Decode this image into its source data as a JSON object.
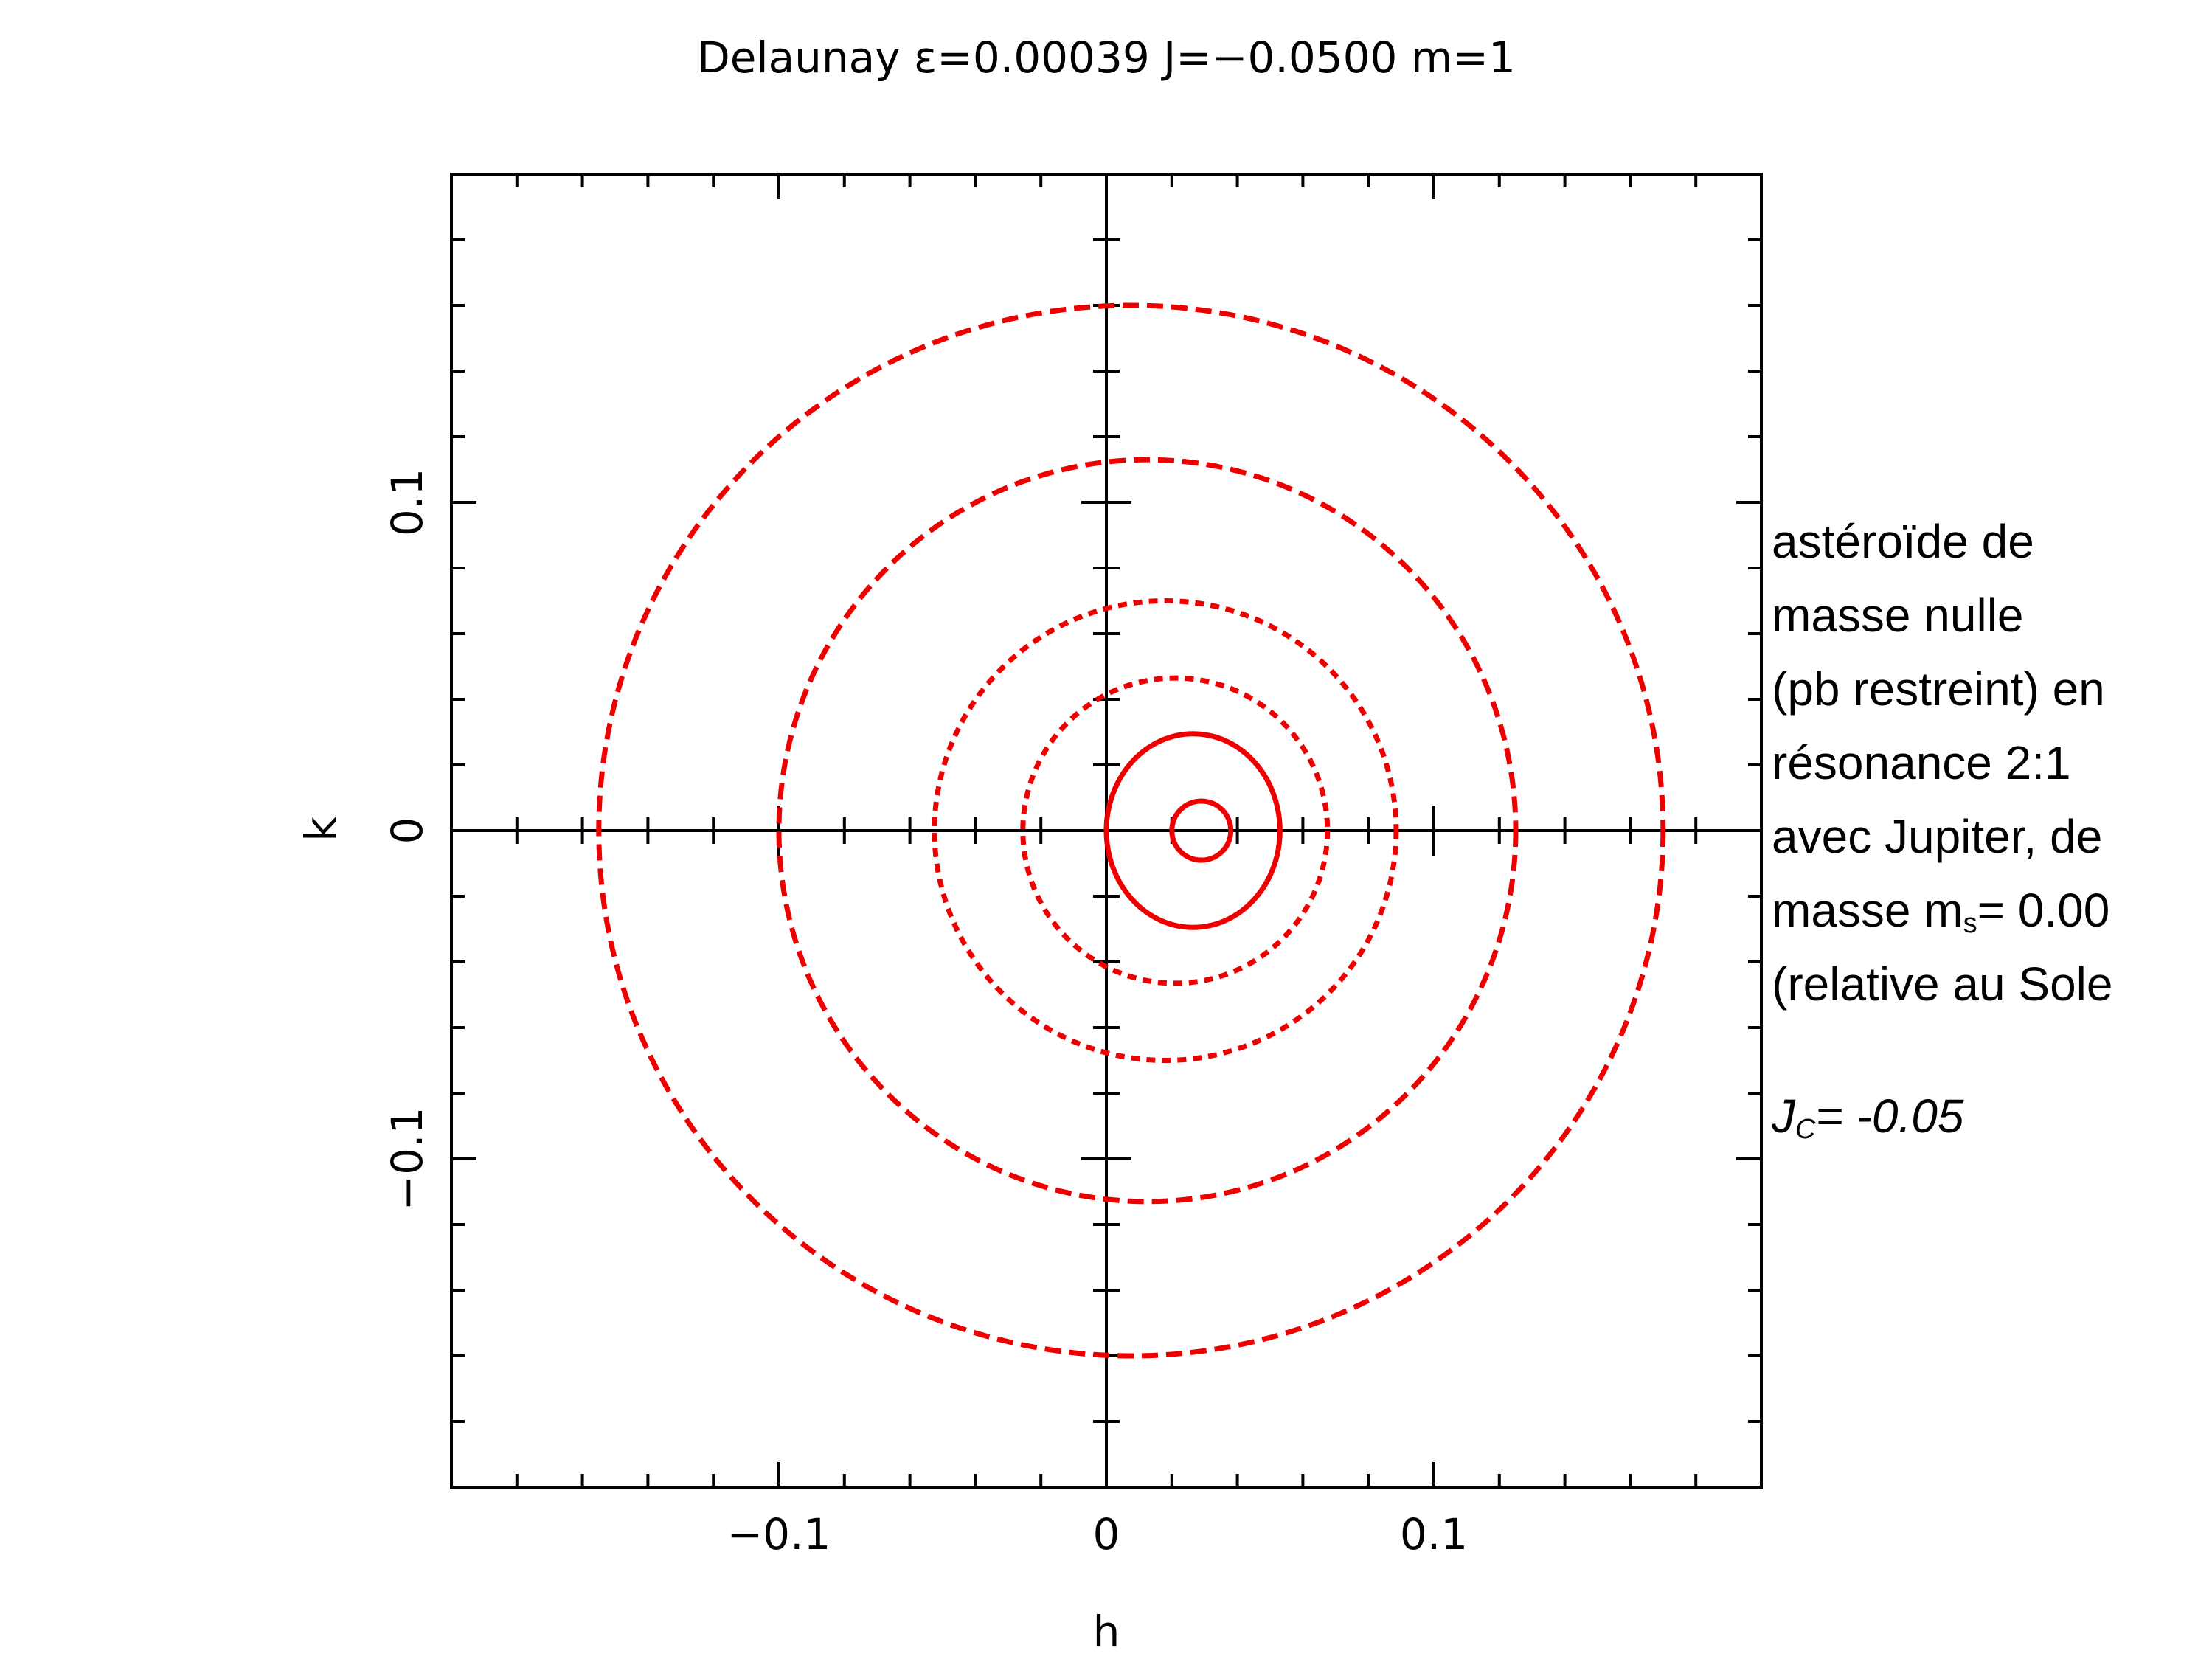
{
  "chart_data": {
    "type": "line",
    "title": "Delaunay ε=0.00039 J=−0.0500 m=1",
    "xlabel": "h",
    "ylabel": "k",
    "xlim": [
      -0.2,
      0.2
    ],
    "ylim": [
      -0.2,
      0.2
    ],
    "x_ticks": [
      -0.1,
      0,
      0.1
    ],
    "y_ticks": [
      -0.1,
      0,
      0.1
    ],
    "x_tick_labels": [
      "−0.1",
      "0",
      "0.1"
    ],
    "y_tick_labels": [
      "−0.1",
      "0",
      "0.1"
    ],
    "grid": false,
    "axis_cross_lines": true,
    "series_color": "#ee0000",
    "series": [
      {
        "center": [
          0.0075,
          0.0
        ],
        "semi_axis_h": 0.1625,
        "semi_axis_k": 0.16,
        "style": "dashed"
      },
      {
        "center": [
          0.0125,
          0.0
        ],
        "semi_axis_h": 0.1125,
        "semi_axis_k": 0.113,
        "style": "dashed"
      },
      {
        "center": [
          0.018,
          0.0
        ],
        "semi_axis_h": 0.0705,
        "semi_axis_k": 0.07,
        "style": "dotted"
      },
      {
        "center": [
          0.021,
          0.0
        ],
        "semi_axis_h": 0.0465,
        "semi_axis_k": 0.0465,
        "style": "dotted"
      },
      {
        "center": [
          0.0265,
          0.0
        ],
        "semi_axis_h": 0.0265,
        "semi_axis_k": 0.0295,
        "style": "solid"
      },
      {
        "center": [
          0.029,
          0.0
        ],
        "semi_axis_h": 0.009,
        "semi_axis_k": 0.009,
        "style": "solid"
      }
    ]
  },
  "annotation": {
    "lines": [
      "astéroïde de",
      "masse nulle",
      "(pb restreint) en",
      "résonance 2:1",
      "avec Jupiter, de"
    ],
    "mass_prefix": "masse m",
    "mass_sub": "s",
    "mass_suffix": "= 0.00",
    "last_line": "(relative au Sole",
    "jc_prefix": "J",
    "jc_sub": "C",
    "jc_suffix": "= -0.05"
  }
}
